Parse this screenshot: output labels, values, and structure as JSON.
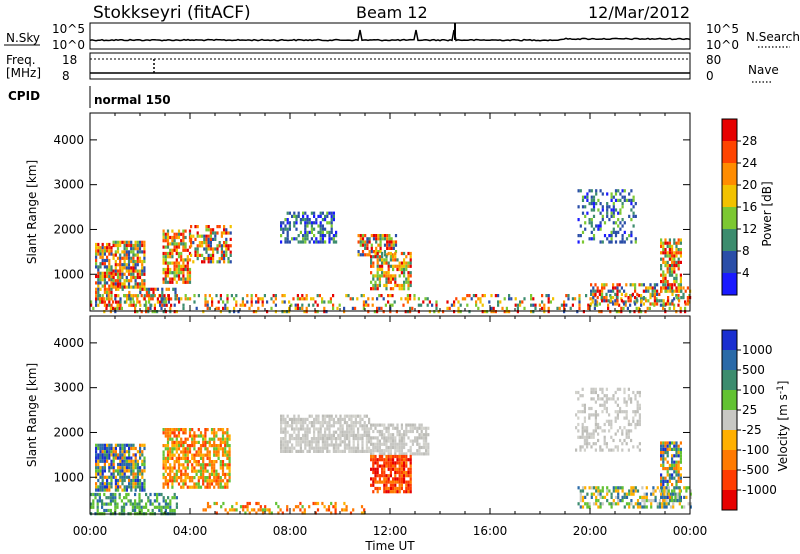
{
  "header": {
    "radar": "Stokkseyri (fitACF)",
    "beam": "Beam 12",
    "date": "12/Mar/2012"
  },
  "status_panels": {
    "nsky_label": "N.Sky",
    "nsearch_label": "N.Search",
    "noise_ticks": [
      "10^5",
      "10^0"
    ],
    "freq_label_1": "Freq.",
    "freq_label_2": "[MHz]",
    "freq_ticks": [
      "18",
      "8"
    ],
    "nave_label": "Nave",
    "nave_ticks": [
      "80",
      "0"
    ],
    "cpid_label": "CPID",
    "cpid_value": "normal 150"
  },
  "chart_data": [
    {
      "type": "heatmap",
      "name": "power",
      "ylabel": "Slant Range [km]",
      "ylim": [
        180,
        4600
      ],
      "yticks": [
        1000,
        2000,
        3000,
        4000
      ],
      "xlim_hours": [
        0,
        24
      ],
      "colorbar": {
        "label": "Power [dB]",
        "ticks": [
          "28",
          "24",
          "20",
          "16",
          "12",
          "8",
          "4"
        ],
        "colors": [
          "#e60000",
          "#ff4400",
          "#ff8c00",
          "#f2c200",
          "#7cc832",
          "#3c8c6e",
          "#2a4ea8",
          "#1a1aff"
        ]
      },
      "regions": [
        {
          "t": [
            0.2,
            0.9
          ],
          "r": [
            300,
            1700
          ],
          "palette": "mix",
          "density": 0.75
        },
        {
          "t": [
            0.9,
            2.2
          ],
          "r": [
            700,
            1750
          ],
          "palette": "mix",
          "density": 0.8
        },
        {
          "t": [
            2.9,
            4.0
          ],
          "r": [
            800,
            2000
          ],
          "palette": "hot",
          "density": 0.7
        },
        {
          "t": [
            4.0,
            5.6
          ],
          "r": [
            1300,
            2100
          ],
          "palette": "mix",
          "density": 0.55
        },
        {
          "t": [
            7.6,
            9.8
          ],
          "r": [
            1700,
            2400
          ],
          "palette": "band",
          "density": 0.55
        },
        {
          "t": [
            10.7,
            12.2
          ],
          "r": [
            1400,
            1900
          ],
          "palette": "mix",
          "density": 0.7
        },
        {
          "t": [
            11.2,
            12.8
          ],
          "r": [
            700,
            1500
          ],
          "palette": "hot",
          "density": 0.65
        },
        {
          "t": [
            19.5,
            21.8
          ],
          "r": [
            1700,
            2900
          ],
          "palette": "band",
          "density": 0.35
        },
        {
          "t": [
            22.8,
            23.6
          ],
          "r": [
            600,
            1800
          ],
          "palette": "hot",
          "density": 0.7
        },
        {
          "t": [
            0.0,
            24.0
          ],
          "r": [
            190,
            560
          ],
          "palette": "mix",
          "density": 0.28
        },
        {
          "t": [
            1.0,
            3.4
          ],
          "r": [
            300,
            700
          ],
          "palette": "mix",
          "density": 0.5
        },
        {
          "t": [
            20.0,
            24.0
          ],
          "r": [
            300,
            800
          ],
          "palette": "mix",
          "density": 0.45
        }
      ]
    },
    {
      "type": "heatmap",
      "name": "velocity",
      "xlabel": "Time UT",
      "ylabel": "Slant Range [km]",
      "ylim": [
        180,
        4600
      ],
      "yticks": [
        1000,
        2000,
        3000,
        4000
      ],
      "xlim_hours": [
        0,
        24
      ],
      "xticks": [
        "00:00",
        "04:00",
        "08:00",
        "12:00",
        "16:00",
        "20:00",
        "00:00"
      ],
      "colorbar": {
        "label": "Velocity [m s",
        "label_sup": "-1",
        "label_end": "]",
        "ticks": [
          "1000",
          "500",
          "100",
          "25",
          "-25",
          "-100",
          "-500",
          "-1000"
        ],
        "colors": [
          "#1a2fd0",
          "#2a6aa8",
          "#3c8c6e",
          "#62c232",
          "#c8c8c4",
          "#ffb000",
          "#ff7a00",
          "#ff3c00",
          "#e60000"
        ]
      },
      "regions": [
        {
          "t": [
            0.2,
            2.2
          ],
          "r": [
            700,
            1750
          ],
          "palette": "vmix",
          "density": 0.75
        },
        {
          "t": [
            2.9,
            5.6
          ],
          "r": [
            800,
            2100
          ],
          "palette": "orange",
          "density": 0.7
        },
        {
          "t": [
            7.6,
            11.2
          ],
          "r": [
            1600,
            2400
          ],
          "palette": "gray",
          "density": 0.75
        },
        {
          "t": [
            11.2,
            13.5
          ],
          "r": [
            1500,
            2200
          ],
          "palette": "gray",
          "density": 0.7
        },
        {
          "t": [
            11.2,
            12.8
          ],
          "r": [
            700,
            1500
          ],
          "palette": "red",
          "density": 0.8
        },
        {
          "t": [
            19.4,
            22.0
          ],
          "r": [
            1600,
            3000
          ],
          "palette": "gray",
          "density": 0.35
        },
        {
          "t": [
            22.8,
            23.6
          ],
          "r": [
            500,
            1800
          ],
          "palette": "vmix",
          "density": 0.7
        },
        {
          "t": [
            0.0,
            3.5
          ],
          "r": [
            190,
            650
          ],
          "palette": "green",
          "density": 0.55
        },
        {
          "t": [
            4.5,
            11.0
          ],
          "r": [
            190,
            450
          ],
          "palette": "orange",
          "density": 0.3
        },
        {
          "t": [
            19.5,
            24.0
          ],
          "r": [
            300,
            800
          ],
          "palette": "gvmix",
          "density": 0.5
        }
      ]
    }
  ]
}
